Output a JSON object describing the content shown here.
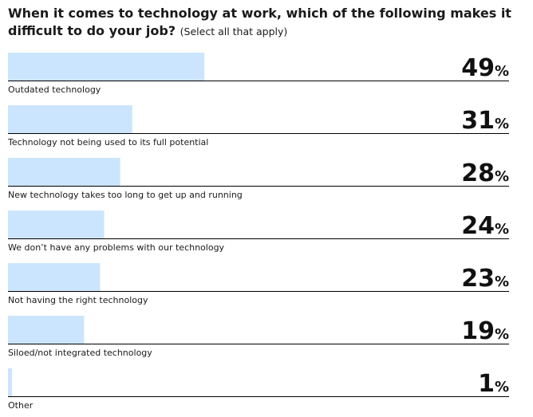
{
  "chart_data": {
    "type": "bar",
    "title": "When it comes to technology at work, which of the following makes it difficult to do your job?",
    "subtitle": "(Select all that apply)",
    "categories": [
      "Outdated technology",
      "Technology not being used to its full potential",
      "New technology takes too long to get up and running",
      "We don’t have any problems with our technology",
      "Not having the right technology",
      "Siloed/not integrated technology",
      "Other"
    ],
    "values": [
      49,
      31,
      28,
      24,
      23,
      19,
      1
    ],
    "unit": "%",
    "xlim": [
      0,
      125
    ],
    "bar_color": "#cce5ff",
    "rule_color": "#000000"
  }
}
